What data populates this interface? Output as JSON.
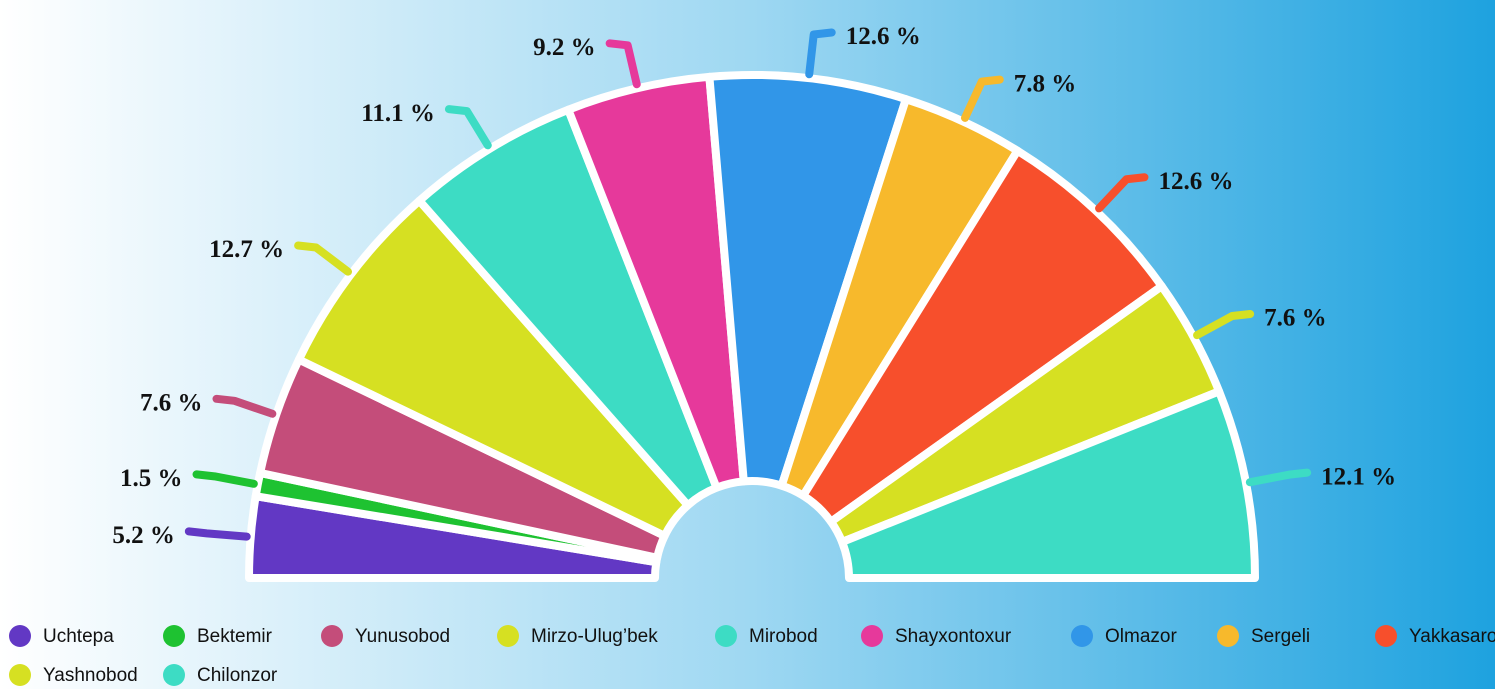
{
  "chart_data": {
    "type": "pie",
    "categories": [
      "Uchtepa",
      "Bektemir",
      "Yunusobod",
      "Mirzo-Ulug’bek",
      "Mirobod",
      "Shayxontoxur",
      "Olmazor",
      "Sergeli",
      "Yakkasaroy",
      "Yashnobod",
      "Chilonzor"
    ],
    "values": [
      5.2,
      1.5,
      7.6,
      12.7,
      11.1,
      9.2,
      12.6,
      7.8,
      12.6,
      7.6,
      12.1
    ],
    "value_labels": [
      "5.2 %",
      "1.5 %",
      "7.6 %",
      "12.7 %",
      "11.1 %",
      "9.2 %",
      "12.6 %",
      "7.8 %",
      "12.6 %",
      "7.6 %",
      "12.1 %"
    ],
    "colors": [
      "#6238c4",
      "#1ec231",
      "#c44d7a",
      "#d6e022",
      "#3ddcc4",
      "#e6399b",
      "#3196e8",
      "#f7b92c",
      "#f74f2c",
      "#d6e022",
      "#3ddcc4"
    ],
    "legend": "bottom"
  }
}
